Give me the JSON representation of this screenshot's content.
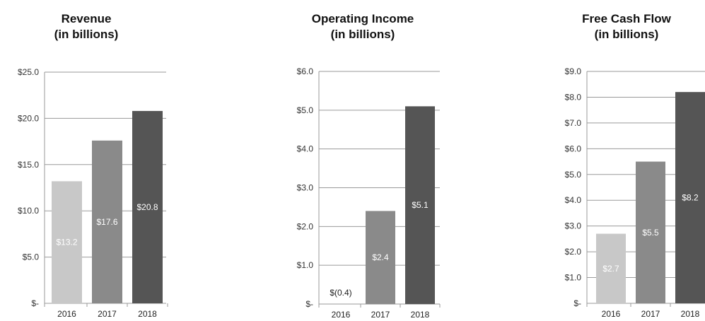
{
  "chart_data": [
    {
      "type": "bar",
      "title": "Revenue",
      "subtitle": "(in billions)",
      "categories": [
        "2016",
        "2017",
        "2018"
      ],
      "values": [
        13.2,
        17.6,
        20.8
      ],
      "value_labels": [
        "$13.2",
        "$17.6",
        "$20.8"
      ],
      "ylim": [
        0,
        25
      ],
      "yticks": [
        0,
        5,
        10,
        15,
        20,
        25
      ],
      "ytick_labels": [
        "$-",
        "$5.0",
        "$10.0",
        "$15.0",
        "$20.0",
        "$25.0"
      ],
      "bar_colors": [
        "#c8c8c8",
        "#8a8a8a",
        "#555555"
      ],
      "grid": true
    },
    {
      "type": "bar",
      "title": "Operating Income",
      "subtitle": "(in billions)",
      "categories": [
        "2016",
        "2017",
        "2018"
      ],
      "values": [
        -0.4,
        2.4,
        5.1
      ],
      "value_labels": [
        "$(0.4)",
        "$2.4",
        "$5.1"
      ],
      "ylim": [
        0,
        6
      ],
      "yticks": [
        0,
        1,
        2,
        3,
        4,
        5,
        6
      ],
      "ytick_labels": [
        "$-",
        "$1.0",
        "$2.0",
        "$3.0",
        "$4.0",
        "$5.0",
        "$6.0"
      ],
      "bar_colors": [
        "#c8c8c8",
        "#8a8a8a",
        "#555555"
      ],
      "grid": true
    },
    {
      "type": "bar",
      "title": "Free Cash Flow",
      "subtitle": "(in billions)",
      "categories": [
        "2016",
        "2017",
        "2018"
      ],
      "values": [
        2.7,
        5.5,
        8.2
      ],
      "value_labels": [
        "$2.7",
        "$5.5",
        "$8.2"
      ],
      "ylim": [
        0,
        9
      ],
      "yticks": [
        0,
        1,
        2,
        3,
        4,
        5,
        6,
        7,
        8,
        9
      ],
      "ytick_labels": [
        "$-",
        "$1.0",
        "$2.0",
        "$3.0",
        "$4.0",
        "$5.0",
        "$6.0",
        "$7.0",
        "$8.0",
        "$9.0"
      ],
      "bar_colors": [
        "#c8c8c8",
        "#8a8a8a",
        "#555555"
      ],
      "grid": true
    }
  ]
}
